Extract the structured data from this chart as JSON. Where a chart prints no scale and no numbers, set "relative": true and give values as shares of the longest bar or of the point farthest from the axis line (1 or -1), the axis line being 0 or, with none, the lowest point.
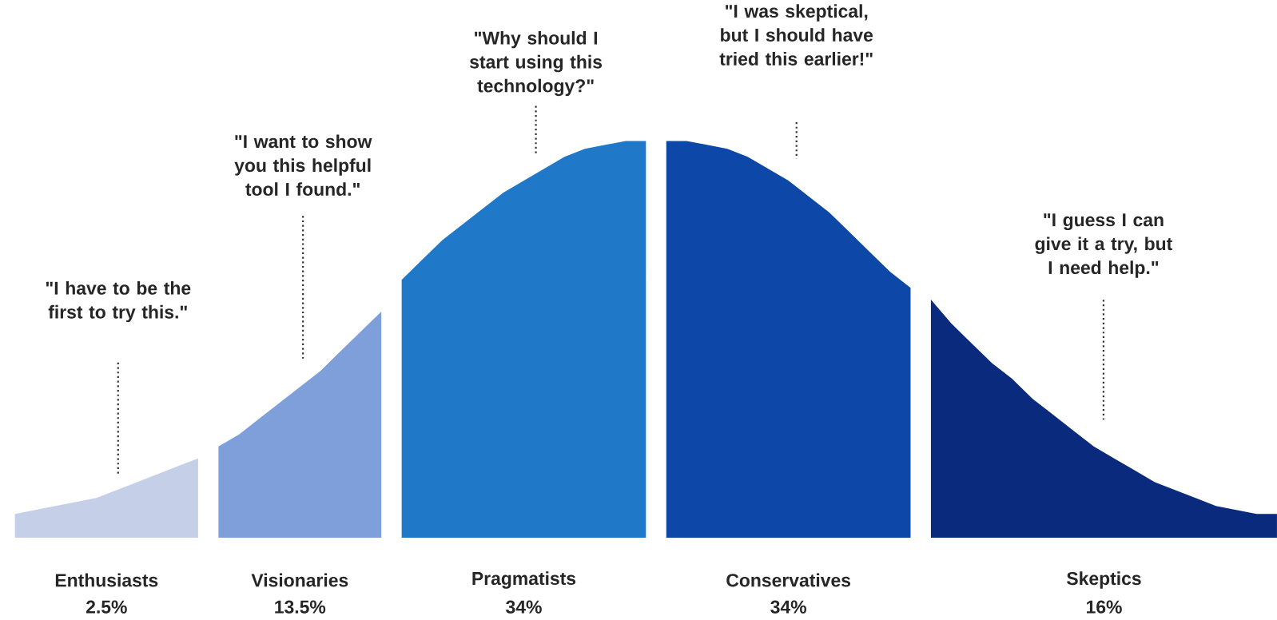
{
  "chart_data": {
    "type": "area",
    "relative": true,
    "categories": [
      null,
      null,
      null,
      null,
      null,
      null,
      null,
      null,
      null,
      null,
      null,
      null,
      null,
      null,
      null,
      null,
      null,
      null,
      null,
      null,
      null,
      null,
      null,
      null,
      null,
      null,
      null,
      null,
      null,
      null,
      null,
      null,
      null,
      null,
      null,
      null,
      null,
      null,
      null,
      null,
      null,
      null,
      null,
      null,
      null,
      null,
      null,
      null,
      null,
      null,
      null,
      null,
      null,
      null,
      null,
      null,
      null,
      null,
      null,
      null,
      null,
      null,
      null
    ],
    "series": [
      {
        "name": "Enthusiasts",
        "color": "#c5d0e8",
        "values": [
          0.06,
          0.07,
          0.08,
          0.09,
          0.1,
          0.12,
          0.14,
          0.16,
          0.18,
          0.2,
          null,
          null,
          null,
          null,
          null,
          null,
          null,
          null,
          null,
          null,
          null,
          null,
          null,
          null,
          null,
          null,
          null,
          null,
          null,
          null,
          null,
          null,
          null,
          null,
          null,
          null,
          null,
          null,
          null,
          null,
          null,
          null,
          null,
          null,
          null,
          null,
          null,
          null,
          null,
          null,
          null,
          null,
          null,
          null,
          null,
          null,
          null,
          null,
          null,
          null,
          null,
          null,
          null
        ]
      },
      {
        "name": "Visionaries",
        "color": "#7e9fd9",
        "values": [
          null,
          null,
          null,
          null,
          null,
          null,
          null,
          null,
          null,
          null,
          0.23,
          0.26,
          0.3,
          0.34,
          0.38,
          0.42,
          0.47,
          0.52,
          0.57,
          null,
          null,
          null,
          null,
          null,
          null,
          null,
          null,
          null,
          null,
          null,
          null,
          null,
          null,
          null,
          null,
          null,
          null,
          null,
          null,
          null,
          null,
          null,
          null,
          null,
          null,
          null,
          null,
          null,
          null,
          null,
          null,
          null,
          null,
          null,
          null,
          null,
          null,
          null,
          null,
          null,
          null,
          null,
          null
        ]
      },
      {
        "name": "Pragmatists",
        "color": "#1f78c8",
        "values": [
          null,
          null,
          null,
          null,
          null,
          null,
          null,
          null,
          null,
          null,
          null,
          null,
          null,
          null,
          null,
          null,
          null,
          null,
          null,
          0.65,
          0.7,
          0.75,
          0.79,
          0.83,
          0.87,
          0.9,
          0.93,
          0.96,
          0.98,
          0.99,
          1.0,
          1.0,
          null,
          null,
          null,
          null,
          null,
          null,
          null,
          null,
          null,
          null,
          null,
          null,
          null,
          null,
          null,
          null,
          null,
          null,
          null,
          null,
          null,
          null,
          null,
          null,
          null,
          null,
          null,
          null,
          null,
          null,
          null
        ]
      },
      {
        "name": "Conservatives",
        "color": "#0d47a8",
        "values": [
          null,
          null,
          null,
          null,
          null,
          null,
          null,
          null,
          null,
          null,
          null,
          null,
          null,
          null,
          null,
          null,
          null,
          null,
          null,
          null,
          null,
          null,
          null,
          null,
          null,
          null,
          null,
          null,
          null,
          null,
          null,
          null,
          1.0,
          1.0,
          0.99,
          0.98,
          0.96,
          0.93,
          0.9,
          0.86,
          0.82,
          0.77,
          0.72,
          0.67,
          0.63,
          null,
          null,
          null,
          null,
          null,
          null,
          null,
          null,
          null,
          null,
          null,
          null,
          null,
          null,
          null,
          null,
          null,
          null
        ]
      },
      {
        "name": "Skeptics",
        "color": "#0a2a7e",
        "values": [
          null,
          null,
          null,
          null,
          null,
          null,
          null,
          null,
          null,
          null,
          null,
          null,
          null,
          null,
          null,
          null,
          null,
          null,
          null,
          null,
          null,
          null,
          null,
          null,
          null,
          null,
          null,
          null,
          null,
          null,
          null,
          null,
          null,
          null,
          null,
          null,
          null,
          null,
          null,
          null,
          null,
          null,
          null,
          null,
          null,
          0.6,
          0.54,
          0.49,
          0.44,
          0.4,
          0.35,
          0.31,
          0.27,
          0.23,
          0.2,
          0.17,
          0.14,
          0.12,
          0.1,
          0.08,
          0.07,
          0.06,
          0.06
        ]
      }
    ],
    "annotations": [
      "\"I have to be the first to try this.\"",
      "\"I want to show you this helpful tool I found.\"",
      "\"Why should I start using this technology?\"",
      "\"I was skeptical, but I should have tried this earlier!\"",
      "\"I guess I can give it a try, but I need help.\"",
      "2.5%",
      "13.5%",
      "34%",
      "34%",
      "16%"
    ]
  }
}
